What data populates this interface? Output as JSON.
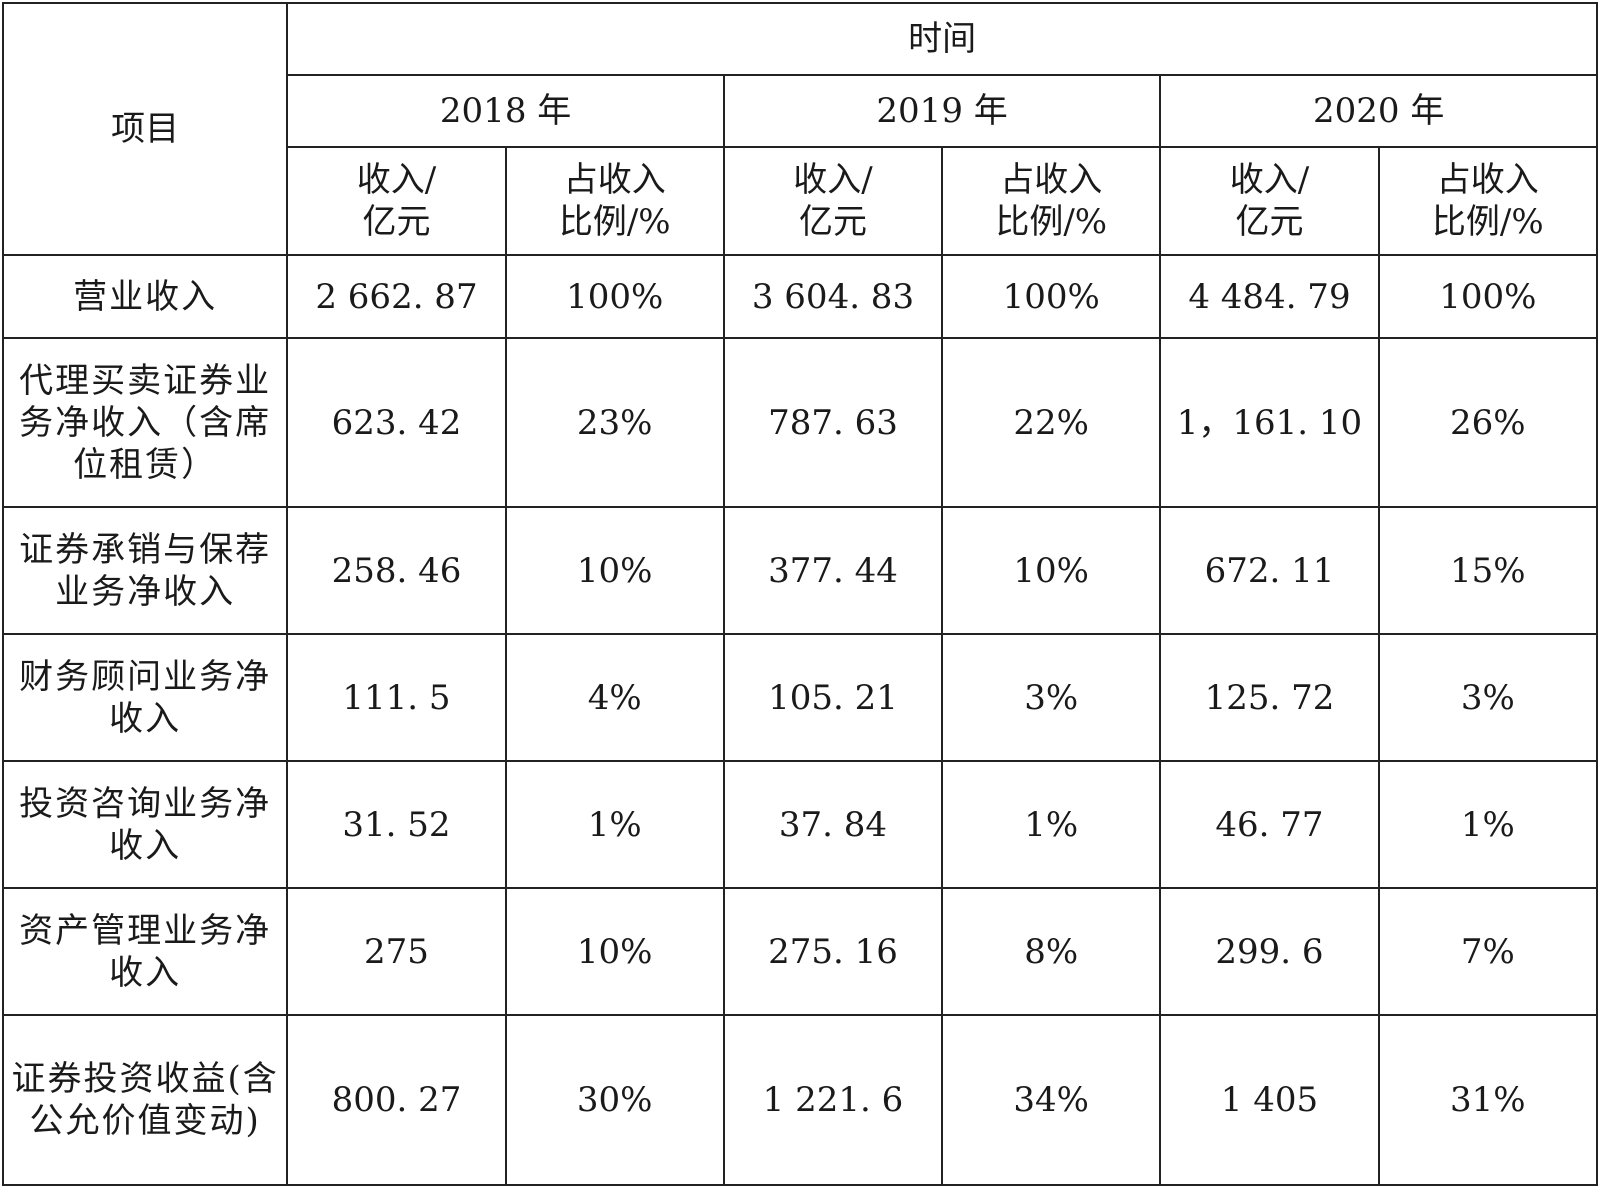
{
  "header": {
    "item_label": "项目",
    "time_label": "时间",
    "years": [
      "2018 年",
      "2019 年",
      "2020 年"
    ],
    "sub_columns": {
      "income_line1": "收入/",
      "income_line2": "亿元",
      "ratio_line1": "占收入",
      "ratio_line2": "比例/%"
    }
  },
  "rows": [
    {
      "item": "营业收入",
      "values": [
        "2 662. 87",
        "100%",
        "3 604. 83",
        "100%",
        "4 484. 79",
        "100%"
      ]
    },
    {
      "item": "代理买卖证券业务净收入（含席位租赁）",
      "values": [
        "623. 42",
        "23%",
        "787. 63",
        "22%",
        "1，161. 10",
        "26%"
      ]
    },
    {
      "item": "证券承销与保荐业务净收入",
      "values": [
        "258. 46",
        "10%",
        "377. 44",
        "10%",
        "672. 11",
        "15%"
      ]
    },
    {
      "item": "财务顾问业务净收入",
      "values": [
        "111. 5",
        "4%",
        "105. 21",
        "3%",
        "125. 72",
        "3%"
      ]
    },
    {
      "item": "投资咨询业务净收入",
      "values": [
        "31. 52",
        "1%",
        "37. 84",
        "1%",
        "46. 77",
        "1%"
      ]
    },
    {
      "item": "资产管理业务净收入",
      "values": [
        "275",
        "10%",
        "275. 16",
        "8%",
        "299. 6",
        "7%"
      ]
    },
    {
      "item": "证券投资收益(含公允价值变动)",
      "values": [
        "800. 27",
        "30%",
        "1 221. 6",
        "34%",
        "1 405",
        "31%"
      ]
    }
  ]
}
